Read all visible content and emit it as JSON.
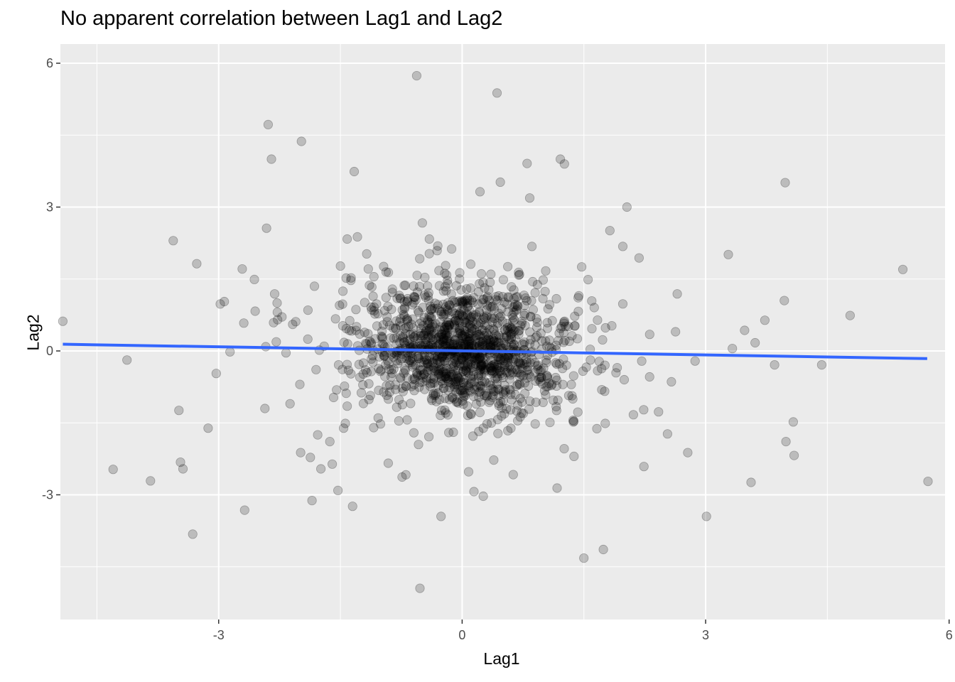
{
  "chart_data": {
    "type": "scatter",
    "title": "No apparent correlation between Lag1 and Lag2",
    "xlabel": "Lag1",
    "ylabel": "Lag2",
    "xlim": [
      -4.95,
      5.95
    ],
    "ylim": [
      -5.6,
      6.4
    ],
    "x_ticks": [
      -3,
      0,
      3,
      6
    ],
    "y_ticks": [
      -3,
      0,
      3,
      6
    ],
    "x_tick_labels": [
      "-3",
      "0",
      "3",
      "6"
    ],
    "y_tick_labels": [
      "-3",
      "0",
      "3",
      "6"
    ],
    "grid": true,
    "legend": "none",
    "colors": {
      "panel_background": "#ebebeb",
      "grid": "#ffffff",
      "points": "#000000",
      "trend_line": "#3366ff"
    },
    "point_alpha": 0.2,
    "trend_line": {
      "method": "linear fit",
      "x": [
        -4.92,
        5.73
      ],
      "y": [
        0.14,
        -0.16
      ]
    },
    "highlighted_points": [
      [
        -4.92,
        0.62
      ],
      [
        -4.3,
        -2.47
      ],
      [
        -4.13,
        -0.19
      ],
      [
        -3.84,
        -2.71
      ],
      [
        -3.56,
        2.3
      ],
      [
        -3.49,
        -1.24
      ],
      [
        -3.47,
        -2.32
      ],
      [
        -3.44,
        -2.46
      ],
      [
        -3.32,
        -3.82
      ],
      [
        -3.27,
        1.82
      ],
      [
        -3.13,
        -1.61
      ],
      [
        -3.03,
        -0.47
      ],
      [
        -2.98,
        0.98
      ],
      [
        -2.93,
        1.03
      ],
      [
        -2.86,
        -0.02
      ],
      [
        -2.71,
        1.71
      ],
      [
        -2.69,
        0.58
      ],
      [
        -2.68,
        -3.32
      ],
      [
        -2.56,
        1.49
      ],
      [
        -2.55,
        0.83
      ],
      [
        -2.43,
        -1.2
      ],
      [
        -2.41,
        2.56
      ],
      [
        -2.39,
        4.72
      ],
      [
        -2.35,
        4.0
      ],
      [
        -2.31,
        1.19
      ],
      [
        -2.28,
        1.0
      ],
      [
        -2.29,
        0.19
      ],
      [
        -2.22,
        0.71
      ],
      [
        -2.17,
        -0.04
      ],
      [
        -2.12,
        -1.1
      ],
      [
        -2.05,
        0.61
      ],
      [
        -1.99,
        -2.12
      ],
      [
        -1.98,
        4.37
      ],
      [
        -1.9,
        0.85
      ],
      [
        -1.87,
        -2.22
      ],
      [
        -1.85,
        -3.12
      ],
      [
        -1.82,
        1.35
      ],
      [
        -1.8,
        -0.39
      ],
      [
        -1.78,
        -1.75
      ],
      [
        -1.74,
        -2.46
      ],
      [
        -1.7,
        0.1
      ],
      [
        -1.63,
        -1.89
      ],
      [
        -1.6,
        -2.36
      ],
      [
        -1.56,
        0.67
      ],
      [
        -1.53,
        -2.91
      ],
      [
        -1.5,
        1.77
      ],
      [
        -1.46,
        -1.61
      ],
      [
        -1.43,
        1.52
      ],
      [
        -1.39,
        0.43
      ],
      [
        -1.35,
        -3.24
      ],
      [
        -1.33,
        3.74
      ],
      [
        -1.29,
        2.38
      ],
      [
        -1.26,
        -0.55
      ],
      [
        -1.2,
        1.01
      ],
      [
        -1.13,
        -0.93
      ],
      [
        -1.09,
        -1.6
      ],
      [
        -1.05,
        0.52
      ],
      [
        -0.97,
        0.13
      ],
      [
        -0.91,
        -2.34
      ],
      [
        -0.86,
        1.29
      ],
      [
        -0.82,
        -0.71
      ],
      [
        -0.78,
        -1.46
      ],
      [
        -0.74,
        -2.63
      ],
      [
        -0.71,
        0.88
      ],
      [
        -0.66,
        0.51
      ],
      [
        -0.61,
        -0.33
      ],
      [
        -0.56,
        5.74
      ],
      [
        -0.52,
        -4.95
      ],
      [
        -0.49,
        2.67
      ],
      [
        -0.45,
        1.12
      ],
      [
        -0.41,
        -1.79
      ],
      [
        -0.37,
        -0.67
      ],
      [
        -0.3,
        2.19
      ],
      [
        -0.26,
        -3.45
      ],
      [
        -0.23,
        0.29
      ],
      [
        -0.18,
        1.47
      ],
      [
        -0.12,
        -0.96
      ],
      [
        -0.08,
        0.64
      ],
      [
        -0.03,
        1.63
      ],
      [
        0.02,
        -0.13
      ],
      [
        0.08,
        -2.52
      ],
      [
        0.15,
        0.44
      ],
      [
        0.22,
        3.32
      ],
      [
        0.26,
        -3.03
      ],
      [
        0.31,
        0.95
      ],
      [
        0.37,
        -0.47
      ],
      [
        0.43,
        5.38
      ],
      [
        0.47,
        3.52
      ],
      [
        0.52,
        -1.31
      ],
      [
        0.58,
        0.24
      ],
      [
        0.63,
        -2.58
      ],
      [
        0.68,
        1.13
      ],
      [
        0.74,
        -0.36
      ],
      [
        0.8,
        3.91
      ],
      [
        0.86,
        2.18
      ],
      [
        0.91,
        -1.07
      ],
      [
        0.97,
        0.37
      ],
      [
        1.03,
        1.67
      ],
      [
        1.1,
        -0.72
      ],
      [
        1.17,
        -2.86
      ],
      [
        1.21,
        4.0
      ],
      [
        1.26,
        3.9
      ],
      [
        1.31,
        0.51
      ],
      [
        1.37,
        -1.48
      ],
      [
        1.43,
        1.11
      ],
      [
        1.5,
        -4.32
      ],
      [
        1.58,
        -0.19
      ],
      [
        1.66,
        -1.62
      ],
      [
        1.74,
        -4.14
      ],
      [
        1.82,
        2.51
      ],
      [
        1.91,
        -0.35
      ],
      [
        1.98,
        2.18
      ],
      [
        2.03,
        3.0
      ],
      [
        2.11,
        -1.33
      ],
      [
        2.18,
        1.94
      ],
      [
        2.24,
        -2.41
      ],
      [
        2.31,
        -0.54
      ],
      [
        2.42,
        -1.27
      ],
      [
        2.53,
        -1.73
      ],
      [
        2.65,
        1.19
      ],
      [
        2.78,
        -2.12
      ],
      [
        2.87,
        -0.21
      ],
      [
        3.01,
        -3.45
      ],
      [
        3.28,
        2.01
      ],
      [
        3.33,
        0.05
      ],
      [
        3.48,
        0.43
      ],
      [
        3.56,
        -2.74
      ],
      [
        3.61,
        0.17
      ],
      [
        3.73,
        0.64
      ],
      [
        3.85,
        -0.29
      ],
      [
        3.97,
        1.05
      ],
      [
        3.98,
        3.51
      ],
      [
        3.99,
        -1.89
      ],
      [
        4.08,
        -1.48
      ],
      [
        4.09,
        -2.18
      ],
      [
        4.43,
        -0.29
      ],
      [
        4.78,
        0.74
      ],
      [
        5.43,
        1.7
      ],
      [
        5.74,
        -2.72
      ]
    ],
    "cloud_points": {
      "count": 1090,
      "x_mean": 0.04,
      "x_sd": 0.62,
      "y_mean": 0.02,
      "y_sd": 0.65,
      "shell_count": 230,
      "shell_x_sd": 0.95,
      "shell_y_sd": 1.05
    }
  }
}
